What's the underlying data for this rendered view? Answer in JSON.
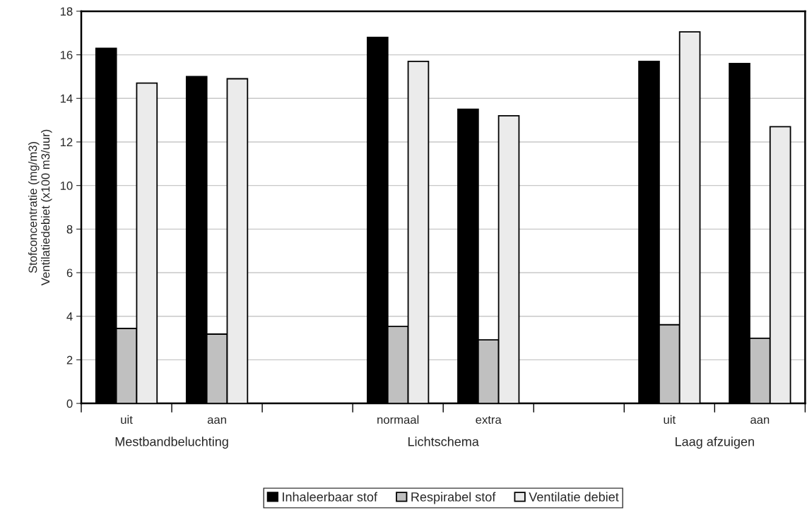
{
  "chart_data": {
    "type": "bar",
    "ylabel": "Stofconcentratie (mg/m3)\nVentilatiedebiet (x100 m3/uur)",
    "categories": [
      "uit",
      "aan",
      null,
      "normaal",
      "extra",
      null,
      "uit",
      "aan"
    ],
    "series": [
      {
        "name": "Inhaleerbaar stof",
        "color": "#000000",
        "values": [
          16.3,
          15.0,
          null,
          16.8,
          13.5,
          null,
          15.7,
          15.6
        ]
      },
      {
        "name": "Respirabel stof",
        "color": "#c0c0c0",
        "values": [
          3.44,
          3.18,
          null,
          3.53,
          2.92,
          null,
          3.61,
          2.99
        ]
      },
      {
        "name": "Ventilatie debiet",
        "color": "#ebebeb",
        "values": [
          14.7,
          14.9,
          null,
          15.7,
          13.2,
          null,
          17.05,
          12.7
        ]
      }
    ],
    "annotations": [
      "Mestbandbeluchting",
      "Lichtschema",
      "Laag afzuigen"
    ],
    "ylim": [
      0,
      18
    ],
    "yticks": [
      0,
      2,
      4,
      6,
      8,
      10,
      12,
      14,
      16,
      18
    ],
    "grid": "y",
    "legend": "bottom"
  }
}
